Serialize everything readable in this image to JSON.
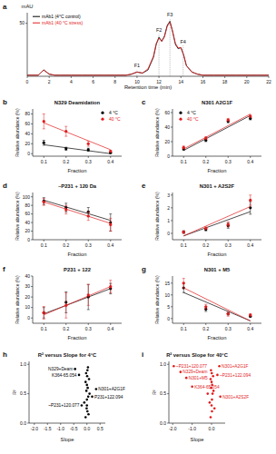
{
  "chart_data": [
    {
      "type": "line",
      "panel_label": "a",
      "y_label": "mAU",
      "x_label": "Retention time (min)",
      "x": [
        0,
        1,
        1.5,
        2,
        2.5,
        3,
        4,
        5,
        6,
        7,
        8,
        9,
        9.5,
        10,
        10.5,
        11,
        11.5,
        11.75,
        12,
        12.25,
        12.5,
        12.75,
        13,
        13.25,
        13.5,
        13.75,
        14,
        14.25,
        14.5,
        15,
        15.5,
        16,
        17,
        18,
        19,
        20,
        21,
        22
      ],
      "xlim": [
        0,
        22
      ],
      "xticks": [
        0,
        2,
        4,
        6,
        8,
        10,
        12,
        14,
        16,
        18,
        20,
        22
      ],
      "ylim": [
        0,
        60
      ],
      "yticks": [
        50
      ],
      "legend": "upper left",
      "series": [
        {
          "name": "mAb1 (4°C control)",
          "color": "#000000",
          "values": [
            1,
            1,
            6,
            2,
            1,
            1,
            1,
            1,
            1,
            1,
            1,
            1,
            2,
            4,
            3,
            6,
            18,
            30,
            37,
            33,
            38,
            48,
            52,
            42,
            30,
            26,
            27,
            20,
            10,
            4,
            2,
            1,
            1,
            1,
            1,
            1,
            1,
            1
          ]
        },
        {
          "name": "mAb1 (40 °C stress)",
          "color": "#e31a1c",
          "values": [
            1,
            1,
            6,
            2,
            1,
            1,
            1,
            1,
            1,
            1,
            1,
            1,
            2,
            4,
            3,
            7,
            19,
            31,
            36,
            33,
            37,
            47,
            51,
            42,
            31,
            27,
            27,
            20,
            10,
            4,
            2,
            1,
            1,
            1,
            1,
            1,
            1,
            1
          ]
        }
      ],
      "annotations": [
        {
          "text": "F1",
          "x": 10,
          "y": 7
        },
        {
          "text": "F2",
          "x": 12,
          "y": 41
        },
        {
          "text": "F3",
          "x": 13,
          "y": 55
        },
        {
          "text": "F4",
          "x": 14.2,
          "y": 30
        }
      ]
    },
    {
      "type": "scatter",
      "panel_label": "b",
      "title": "N329 Deamidation",
      "x_label": "Fraction",
      "y_label": "Relative abundance (%)",
      "x": [
        0.1,
        0.2,
        0.3,
        0.4
      ],
      "xlim": [
        0.05,
        0.45
      ],
      "xticks": [
        0.1,
        0.2,
        0.3,
        0.4
      ],
      "ylim": [
        -5,
        90
      ],
      "yticks": [
        0,
        20,
        40,
        60,
        80
      ],
      "marker": "circle",
      "legend": "upper right",
      "series": [
        {
          "name": "4 °C",
          "color": "#000000",
          "values": [
            22,
            10,
            8,
            2
          ],
          "errors": [
            5,
            3,
            3,
            1
          ],
          "trend": [
            18,
            0
          ]
        },
        {
          "name": "40 °C",
          "color": "#e31a1c",
          "values": [
            65,
            45,
            20,
            5
          ],
          "errors": [
            15,
            10,
            5,
            2
          ],
          "trend": [
            62,
            8
          ]
        }
      ]
    },
    {
      "type": "scatter",
      "panel_label": "c",
      "title": "N301 A2G1F",
      "x_label": "Fraction",
      "y_label": "Relative abundance (%)",
      "x": [
        0.1,
        0.2,
        0.3,
        0.4
      ],
      "xlim": [
        0.05,
        0.45
      ],
      "xticks": [
        0.1,
        0.2,
        0.3,
        0.4
      ],
      "ylim": [
        0,
        65
      ],
      "yticks": [
        0,
        20,
        40,
        60
      ],
      "marker": "circle",
      "legend": "upper left",
      "series": [
        {
          "name": "4 °C",
          "color": "#000000",
          "values": [
            10,
            22,
            48,
            52
          ],
          "errors": [
            2,
            2,
            2,
            2
          ],
          "trend": [
            8,
            56
          ]
        },
        {
          "name": "40 °C",
          "color": "#e31a1c",
          "values": [
            12,
            25,
            50,
            55
          ],
          "errors": [
            2,
            2,
            2,
            2
          ],
          "trend": [
            10,
            58
          ]
        }
      ]
    },
    {
      "type": "scatter",
      "panel_label": "d",
      "title": "~P231 + 120 Da",
      "x_label": "Fraction",
      "y_label": "Relative abundance (%)",
      "x": [
        0.1,
        0.2,
        0.3,
        0.4
      ],
      "xlim": [
        0.05,
        0.45
      ],
      "xticks": [
        0.1,
        0.2,
        0.3,
        0.4
      ],
      "ylim": [
        0,
        110
      ],
      "yticks": [
        0,
        20,
        40,
        60,
        80,
        100
      ],
      "marker": "circle",
      "series": [
        {
          "name": "4 °C",
          "color": "#000000",
          "values": [
            90,
            75,
            65,
            40
          ],
          "errors": [
            8,
            10,
            10,
            20
          ],
          "trend": [
            92,
            45
          ]
        },
        {
          "name": "40 °C",
          "color": "#e31a1c",
          "values": [
            88,
            70,
            55,
            35
          ],
          "errors": [
            8,
            10,
            10,
            15
          ],
          "trend": [
            88,
            38
          ]
        }
      ]
    },
    {
      "type": "scatter",
      "panel_label": "e",
      "title": "N301 + A2S2F",
      "x_label": "Fraction",
      "y_label": "Relative abundance (%)",
      "x": [
        0.1,
        0.2,
        0.3,
        0.4
      ],
      "xlim": [
        0.05,
        0.45
      ],
      "xticks": [
        0.1,
        0.2,
        0.3,
        0.4
      ],
      "ylim": [
        -0.5,
        3.2
      ],
      "yticks": [
        0,
        1,
        2,
        3
      ],
      "marker": "circle",
      "series": [
        {
          "name": "4 °C",
          "color": "#000000",
          "values": [
            0.1,
            0.3,
            0.6,
            2.0
          ],
          "errors": [
            0.1,
            0.1,
            0.2,
            0.5
          ],
          "trend": [
            -0.2,
            1.7
          ]
        },
        {
          "name": "40 °C",
          "color": "#e31a1c",
          "values": [
            0.1,
            0.4,
            0.7,
            2.6
          ],
          "errors": [
            0.1,
            0.1,
            0.2,
            0.4
          ],
          "trend": [
            -0.2,
            2.1
          ]
        }
      ]
    },
    {
      "type": "scatter",
      "panel_label": "f",
      "title": "P231 + 122",
      "x_label": "Fraction",
      "y_label": "Relative abundance (%)",
      "x": [
        0.1,
        0.2,
        0.3,
        0.4
      ],
      "xlim": [
        0.05,
        0.45
      ],
      "xticks": [
        0.1,
        0.2,
        0.3,
        0.4
      ],
      "ylim": [
        -5,
        40
      ],
      "yticks": [
        0,
        10,
        20,
        30,
        40
      ],
      "marker": "circle",
      "series": [
        {
          "name": "4 °C",
          "color": "#000000",
          "values": [
            5,
            15,
            20,
            28
          ],
          "errors": [
            5,
            10,
            12,
            5
          ],
          "trend": [
            4,
            28
          ]
        },
        {
          "name": "40 °C",
          "color": "#e31a1c",
          "values": [
            5,
            12,
            22,
            30
          ],
          "errors": [
            6,
            12,
            10,
            6
          ],
          "trend": [
            3,
            30
          ]
        }
      ]
    },
    {
      "type": "scatter",
      "panel_label": "g",
      "title": "N301 + M5",
      "x_label": "Fraction",
      "y_label": "Relative abundance (%)",
      "x": [
        0.1,
        0.2,
        0.3,
        0.4
      ],
      "xlim": [
        0.05,
        0.45
      ],
      "xticks": [
        0.1,
        0.2,
        0.3,
        0.4
      ],
      "ylim": [
        -2,
        18
      ],
      "yticks": [
        0,
        5,
        10,
        15
      ],
      "marker": "circle",
      "series": [
        {
          "name": "4 °C",
          "color": "#000000",
          "values": [
            13,
            4,
            2,
            1
          ],
          "errors": [
            2,
            1,
            0.5,
            0.5
          ],
          "trend": [
            11,
            -1
          ]
        },
        {
          "name": "40 °C",
          "color": "#e31a1c",
          "values": [
            15,
            5,
            2,
            1.5
          ],
          "errors": [
            2,
            1,
            1,
            0.5
          ],
          "trend": [
            13,
            -1
          ]
        }
      ]
    },
    {
      "type": "scatter",
      "panel_label": "h",
      "title": "R² versus Slope for 4°C",
      "x_label": "Slope",
      "y_label": "R²",
      "x": [
        -0.45,
        -0.3,
        -0.2,
        0.2,
        0.35,
        -0.05,
        0.02,
        0.0,
        -0.1,
        0.05,
        0.1,
        -0.02,
        0.03,
        0.0,
        -0.05,
        0.08,
        0.01,
        -0.03,
        0.02,
        0.04,
        0.0,
        -0.01,
        0.06
      ],
      "xlim": [
        -2.2,
        0.7
      ],
      "xticks": [
        {
          "value": -2,
          "label": "-2.0"
        },
        {
          "value": -1.5,
          "label": "-1.5"
        },
        {
          "value": -1,
          "label": "-1.0"
        },
        {
          "value": -0.5,
          "label": "-0.5"
        },
        {
          "value": 0,
          "label": "0.0"
        },
        {
          "value": 0.5,
          "label": "0.5"
        }
      ],
      "ylim": [
        0,
        1.05
      ],
      "yticks": [
        {
          "value": 0,
          "label": "0.0"
        },
        {
          "value": 0.5,
          "label": "0.5"
        },
        {
          "value": 1,
          "label": "1.0"
        }
      ],
      "marker": "circle",
      "series": [
        {
          "color": "#000000",
          "values": [
            0.92,
            0.82,
            0.3,
            0.45,
            0.58,
            0.1,
            0.2,
            0.3,
            0.35,
            0.45,
            0.5,
            0.55,
            0.6,
            0.65,
            0.7,
            0.75,
            0.8,
            0.85,
            0.9,
            0.95,
            0.4,
            0.25,
            0.15
          ]
        }
      ],
      "annotations": [
        {
          "text": "N329+Deam",
          "x": -0.45,
          "y": 0.92
        },
        {
          "text": "K364-65.054",
          "x": -0.3,
          "y": 0.82
        },
        {
          "text": "~P231+120.077",
          "x": -0.2,
          "y": 0.3
        },
        {
          "text": "P231+122.094",
          "x": 0.2,
          "y": 0.45
        },
        {
          "text": "N301+A2G1F",
          "x": 0.35,
          "y": 0.58
        }
      ]
    },
    {
      "type": "scatter",
      "panel_label": "i",
      "title": "R² versus Slope for 40°C",
      "x_label": "Slope",
      "y_label": "R²",
      "x": [
        -1.95,
        -1.6,
        -1.3,
        -1.0,
        0.4,
        0.3,
        0.45,
        -0.05,
        0.02,
        0.0,
        -0.1,
        0.05,
        0.1,
        -0.02,
        0.03,
        0.0,
        -0.05,
        0.08,
        0.01,
        -0.03,
        0.02,
        0.15,
        -0.2
      ],
      "xlim": [
        -2.2,
        0.7
      ],
      "xticks": [
        {
          "value": -2,
          "label": "-2.0"
        },
        {
          "value": -1,
          "label": "-1.0"
        },
        {
          "value": 0,
          "label": "0.0"
        }
      ],
      "ylim": [
        0,
        1.05
      ],
      "yticks": [
        {
          "value": 0,
          "label": "0.0"
        },
        {
          "value": 0.5,
          "label": "0.5"
        },
        {
          "value": 1,
          "label": "1.0"
        }
      ],
      "marker": "circle",
      "series": [
        {
          "color": "#e31a1c",
          "values": [
            0.97,
            0.87,
            0.77,
            0.62,
            0.97,
            0.82,
            0.45,
            0.1,
            0.2,
            0.3,
            0.35,
            0.5,
            0.55,
            0.6,
            0.65,
            0.7,
            0.75,
            0.8,
            0.85,
            0.9,
            0.4,
            0.25,
            0.5
          ]
        }
      ],
      "annotations": [
        {
          "text": "~P231+120.077",
          "x": -1.95,
          "y": 0.97
        },
        {
          "text": "N329+Deam",
          "x": -1.6,
          "y": 0.87
        },
        {
          "text": "N301+M5",
          "x": -1.3,
          "y": 0.77
        },
        {
          "text": "K364-65.054",
          "x": -1.0,
          "y": 0.62
        },
        {
          "text": "N301+A2G1F",
          "x": 0.4,
          "y": 0.97
        },
        {
          "text": "~P231+122.094",
          "x": 0.3,
          "y": 0.82
        },
        {
          "text": "N301+A2S2F",
          "x": 0.45,
          "y": 0.45
        }
      ]
    }
  ]
}
